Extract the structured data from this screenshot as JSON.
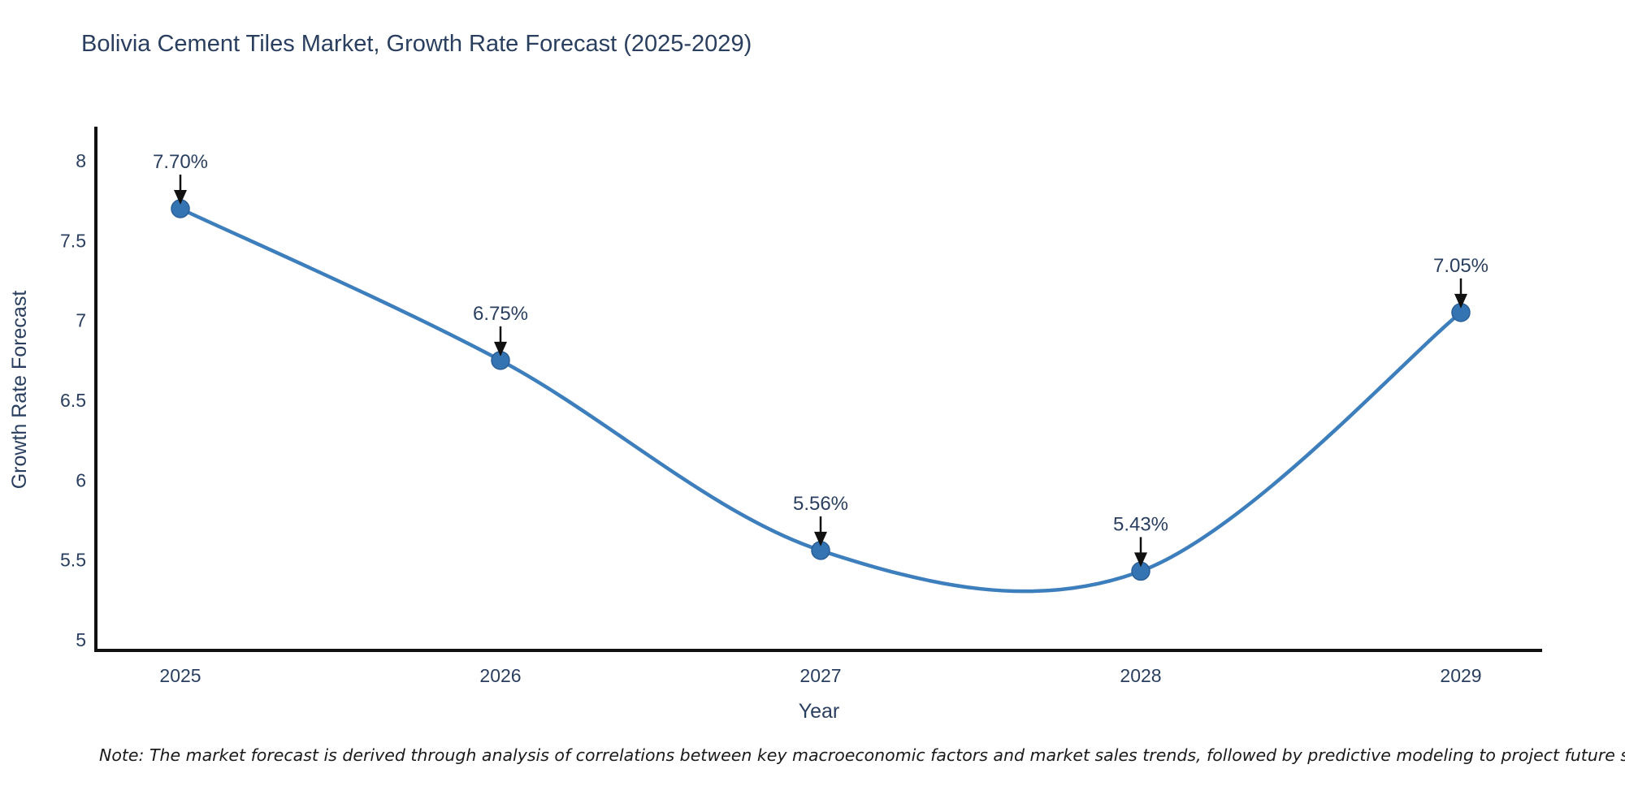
{
  "title": "Bolivia Cement Tiles Market, Growth Rate Forecast (2025-2029)",
  "footnote": "Note: The market forecast is derived through analysis of correlations between key macroeconomic factors and market sales trends, followed by predictive modeling to project future sales",
  "chart_data": {
    "type": "line",
    "title": "Bolivia Cement Tiles Market, Growth Rate Forecast (2025-2029)",
    "xlabel": "Year",
    "ylabel": "Growth Rate Forecast",
    "categories": [
      "2025",
      "2026",
      "2027",
      "2028",
      "2029"
    ],
    "series": [
      {
        "name": "Growth Rate Forecast",
        "values": [
          7.7,
          6.75,
          5.56,
          5.43,
          7.05
        ]
      }
    ],
    "point_labels": [
      "7.70%",
      "6.75%",
      "5.56%",
      "5.43%",
      "7.05%"
    ],
    "y_tick_values": [
      5,
      5.5,
      6,
      6.5,
      7,
      7.5,
      8
    ],
    "y_tick_labels": [
      "5",
      "5.5",
      "6",
      "6.5",
      "7",
      "7.5",
      "8"
    ],
    "ylim": [
      4.9,
      8.2
    ],
    "grid": false,
    "legend": "none",
    "line_shape": "spline",
    "marker": "circle",
    "annotation_style": "value-label-with-arrow-to-point"
  },
  "colors": {
    "line": "#3d7ebc",
    "marker_fill": "#3574b3",
    "marker_edge": "#2a5f97",
    "axis_line": "#111111",
    "tick_text": "#2a3f5f",
    "title_text": "#2a3f5f",
    "annotation_text": "#2a3f5f",
    "arrow": "#111111",
    "background": "#ffffff",
    "note_text": "#1a1a1a"
  }
}
